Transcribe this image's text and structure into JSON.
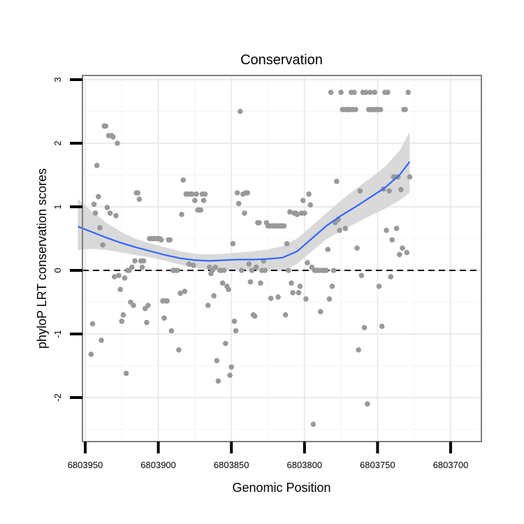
{
  "chart_data": {
    "type": "scatter",
    "title": "Conservation",
    "xlabel": "Genomic Position",
    "ylabel": "phyloP LRT conservation scores",
    "x_reversed": true,
    "xlim": [
      6803960,
      6803690
    ],
    "ylim": [
      -2.5,
      3.05
    ],
    "x_ticks": [
      6803950,
      6803900,
      6803850,
      6803800,
      6803750,
      6803700
    ],
    "x_tick_labels": [
      "6803950",
      "6803900",
      "6803850",
      "6803800",
      "6803750",
      "6803700"
    ],
    "y_ticks": [
      -2,
      -1,
      0,
      1,
      2,
      3
    ],
    "y_tick_labels": [
      "-2",
      "-1",
      "0",
      "1",
      "2",
      "3"
    ],
    "grid": true,
    "reference_line": {
      "y": 0,
      "style": "dashed"
    },
    "colors": {
      "points": "#999999",
      "smooth_line": "#3366FF",
      "ribbon": "#d9d9d9",
      "grid": "#ebebeb",
      "panel_border": "#7f7f7f"
    },
    "points": [
      [
        6803946,
        -1.32
      ],
      [
        6803945,
        -0.84
      ],
      [
        6803944,
        1.04
      ],
      [
        6803943,
        0.9
      ],
      [
        6803942,
        1.65
      ],
      [
        6803941,
        1.16
      ],
      [
        6803940,
        0.67
      ],
      [
        6803939,
        -1.1
      ],
      [
        6803938,
        0.4
      ],
      [
        6803937,
        2.27
      ],
      [
        6803936,
        2.27
      ],
      [
        6803935,
        0.99
      ],
      [
        6803934,
        2.12
      ],
      [
        6803933,
        0.9
      ],
      [
        6803932,
        2.12
      ],
      [
        6803931,
        2.1
      ],
      [
        6803930,
        -0.1
      ],
      [
        6803929,
        0.86
      ],
      [
        6803928,
        2.0
      ],
      [
        6803927,
        -0.08
      ],
      [
        6803926,
        -0.3
      ],
      [
        6803925,
        -0.8
      ],
      [
        6803924,
        -0.7
      ],
      [
        6803923,
        -0.12
      ],
      [
        6803922,
        -1.62
      ],
      [
        6803921,
        0.0
      ],
      [
        6803920,
        0.0
      ],
      [
        6803919,
        -0.5
      ],
      [
        6803918,
        0.05
      ],
      [
        6803917,
        -0.55
      ],
      [
        6803916,
        0.15
      ],
      [
        6803915,
        1.22
      ],
      [
        6803914,
        1.22
      ],
      [
        6803913,
        1.12
      ],
      [
        6803912,
        0.15
      ],
      [
        6803911,
        0.05
      ],
      [
        6803910,
        0.15
      ],
      [
        6803909,
        -0.6
      ],
      [
        6803908,
        -0.82
      ],
      [
        6803907,
        -0.55
      ],
      [
        6803906,
        0.5
      ],
      [
        6803905,
        0.5
      ],
      [
        6803904,
        0.5
      ],
      [
        6803903,
        0.5
      ],
      [
        6803902,
        0.5
      ],
      [
        6803901,
        0.5
      ],
      [
        6803900,
        0.5
      ],
      [
        6803899,
        0.5
      ],
      [
        6803898,
        0.48
      ],
      [
        6803897,
        -0.48
      ],
      [
        6803896,
        -0.75
      ],
      [
        6803895,
        -0.48
      ],
      [
        6803894,
        -0.48
      ],
      [
        6803893,
        0.48
      ],
      [
        6803892,
        0.48
      ],
      [
        6803891,
        -0.95
      ],
      [
        6803890,
        0.0
      ],
      [
        6803889,
        0.0
      ],
      [
        6803888,
        0.0
      ],
      [
        6803887,
        0.0
      ],
      [
        6803886,
        -1.25
      ],
      [
        6803885,
        -0.36
      ],
      [
        6803884,
        0.88
      ],
      [
        6803883,
        1.42
      ],
      [
        6803882,
        -0.33
      ],
      [
        6803881,
        1.2
      ],
      [
        6803880,
        1.2
      ],
      [
        6803879,
        0.1
      ],
      [
        6803878,
        1.2
      ],
      [
        6803877,
        1.2
      ],
      [
        6803876,
        0.08
      ],
      [
        6803875,
        1.1
      ],
      [
        6803874,
        1.2
      ],
      [
        6803873,
        0.95
      ],
      [
        6803872,
        0.95
      ],
      [
        6803871,
        0.95
      ],
      [
        6803870,
        1.2
      ],
      [
        6803869,
        1.1
      ],
      [
        6803868,
        1.2
      ],
      [
        6803866,
        -0.55
      ],
      [
        6803865,
        0.05
      ],
      [
        6803864,
        -0.05
      ],
      [
        6803863,
        0.0
      ],
      [
        6803862,
        -0.4
      ],
      [
        6803861,
        0.05
      ],
      [
        6803860,
        -1.42
      ],
      [
        6803859,
        -1.74
      ],
      [
        6803858,
        0.0
      ],
      [
        6803857,
        0.0
      ],
      [
        6803856,
        -0.2
      ],
      [
        6803855,
        0.0
      ],
      [
        6803854,
        -1.15
      ],
      [
        6803853,
        -0.25
      ],
      [
        6803852,
        -0.3
      ],
      [
        6803851,
        -1.65
      ],
      [
        6803850,
        -1.52
      ],
      [
        6803849,
        0.42
      ],
      [
        6803848,
        -0.8
      ],
      [
        6803847,
        -0.95
      ],
      [
        6803846,
        1.22
      ],
      [
        6803845,
        1.05
      ],
      [
        6803844,
        2.5
      ],
      [
        6803843,
        0.0
      ],
      [
        6803842,
        1.2
      ],
      [
        6803841,
        0.9
      ],
      [
        6803840,
        1.22
      ],
      [
        6803839,
        1.22
      ],
      [
        6803838,
        0.1
      ],
      [
        6803837,
        -0.18
      ],
      [
        6803836,
        0.0
      ],
      [
        6803835,
        -0.7
      ],
      [
        6803834,
        -0.72
      ],
      [
        6803833,
        0.05
      ],
      [
        6803832,
        0.75
      ],
      [
        6803831,
        0.75
      ],
      [
        6803830,
        -0.2
      ],
      [
        6803829,
        0.0
      ],
      [
        6803828,
        0.15
      ],
      [
        6803827,
        0.0
      ],
      [
        6803826,
        0.75
      ],
      [
        6803825,
        0.7
      ],
      [
        6803824,
        0.7
      ],
      [
        6803823,
        -0.44
      ],
      [
        6803822,
        0.7
      ],
      [
        6803821,
        0.7
      ],
      [
        6803820,
        0.7
      ],
      [
        6803819,
        0.7
      ],
      [
        6803818,
        -0.42
      ],
      [
        6803817,
        0.7
      ],
      [
        6803816,
        0.7
      ],
      [
        6803815,
        0.7
      ],
      [
        6803814,
        0.7
      ],
      [
        6803813,
        -0.7
      ],
      [
        6803812,
        0.42
      ],
      [
        6803811,
        0.0
      ],
      [
        6803810,
        0.92
      ],
      [
        6803809,
        -0.2
      ],
      [
        6803808,
        -0.35
      ],
      [
        6803807,
        0.9
      ],
      [
        6803806,
        0.9
      ],
      [
        6803805,
        0.88
      ],
      [
        6803804,
        -0.35
      ],
      [
        6803803,
        -0.25
      ],
      [
        6803802,
        0.9
      ],
      [
        6803801,
        1.1
      ],
      [
        6803800,
        0.9
      ],
      [
        6803799,
        -0.45
      ],
      [
        6803798,
        0.12
      ],
      [
        6803797,
        1.2
      ],
      [
        6803796,
        1.03
      ],
      [
        6803795,
        0.05
      ],
      [
        6803794,
        -2.42
      ],
      [
        6803793,
        0.0
      ],
      [
        6803792,
        0.0
      ],
      [
        6803791,
        0.0
      ],
      [
        6803790,
        0.0
      ],
      [
        6803789,
        -0.65
      ],
      [
        6803788,
        0.0
      ],
      [
        6803787,
        0.0
      ],
      [
        6803786,
        0.0
      ],
      [
        6803785,
        0.0
      ],
      [
        6803784,
        0.33
      ],
      [
        6803783,
        -0.45
      ],
      [
        6803782,
        2.8
      ],
      [
        6803781,
        -0.25
      ],
      [
        6803780,
        0.0
      ],
      [
        6803779,
        0.75
      ],
      [
        6803778,
        1.4
      ],
      [
        6803777,
        0.8
      ],
      [
        6803776,
        0.63
      ],
      [
        6803775,
        2.8
      ],
      [
        6803774,
        2.53
      ],
      [
        6803773,
        2.53
      ],
      [
        6803772,
        0.66
      ],
      [
        6803771,
        2.53
      ],
      [
        6803770,
        2.53
      ],
      [
        6803769,
        2.53
      ],
      [
        6803768,
        2.8
      ],
      [
        6803767,
        2.53
      ],
      [
        6803766,
        2.8
      ],
      [
        6803765,
        2.53
      ],
      [
        6803764,
        0.35
      ],
      [
        6803763,
        -1.25
      ],
      [
        6803762,
        1.25
      ],
      [
        6803761,
        -0.08
      ],
      [
        6803760,
        2.8
      ],
      [
        6803759,
        -0.9
      ],
      [
        6803758,
        2.8
      ],
      [
        6803757,
        -2.1
      ],
      [
        6803756,
        2.53
      ],
      [
        6803755,
        2.8
      ],
      [
        6803754,
        2.53
      ],
      [
        6803753,
        2.53
      ],
      [
        6803752,
        2.8
      ],
      [
        6803751,
        2.53
      ],
      [
        6803750,
        2.53
      ],
      [
        6803749,
        -0.25
      ],
      [
        6803748,
        2.53
      ],
      [
        6803747,
        -0.88
      ],
      [
        6803746,
        1.28
      ],
      [
        6803745,
        2.8
      ],
      [
        6803744,
        0.63
      ],
      [
        6803743,
        2.8
      ],
      [
        6803742,
        1.25
      ],
      [
        6803741,
        -0.1
      ],
      [
        6803740,
        0.48
      ],
      [
        6803739,
        1.47
      ],
      [
        6803738,
        1.47
      ],
      [
        6803737,
        0.66
      ],
      [
        6803736,
        1.47
      ],
      [
        6803735,
        0.25
      ],
      [
        6803734,
        1.27
      ],
      [
        6803733,
        0.35
      ],
      [
        6803732,
        2.53
      ],
      [
        6803731,
        2.53
      ],
      [
        6803730,
        0.28
      ],
      [
        6803729,
        2.8
      ],
      [
        6803728,
        1.47
      ]
    ],
    "smooth_fit": {
      "x": [
        6803955,
        6803945,
        6803935,
        6803925,
        6803915,
        6803905,
        6803895,
        6803885,
        6803875,
        6803865,
        6803855,
        6803845,
        6803835,
        6803825,
        6803815,
        6803805,
        6803795,
        6803785,
        6803775,
        6803765,
        6803755,
        6803745,
        6803735,
        6803728
      ],
      "y": [
        0.69,
        0.6,
        0.51,
        0.43,
        0.36,
        0.3,
        0.24,
        0.19,
        0.16,
        0.15,
        0.16,
        0.17,
        0.17,
        0.18,
        0.2,
        0.3,
        0.5,
        0.7,
        0.86,
        1.0,
        1.15,
        1.3,
        1.5,
        1.71
      ],
      "lower": [
        0.32,
        0.34,
        0.32,
        0.28,
        0.24,
        0.2,
        0.15,
        0.09,
        0.04,
        0.01,
        0.0,
        0.0,
        -0.01,
        -0.01,
        0.0,
        0.1,
        0.3,
        0.49,
        0.62,
        0.74,
        0.86,
        0.97,
        1.1,
        1.22
      ],
      "upper": [
        1.12,
        0.92,
        0.74,
        0.6,
        0.49,
        0.42,
        0.36,
        0.3,
        0.26,
        0.25,
        0.26,
        0.28,
        0.3,
        0.33,
        0.38,
        0.5,
        0.7,
        0.9,
        1.1,
        1.28,
        1.45,
        1.63,
        1.88,
        2.18
      ]
    }
  }
}
